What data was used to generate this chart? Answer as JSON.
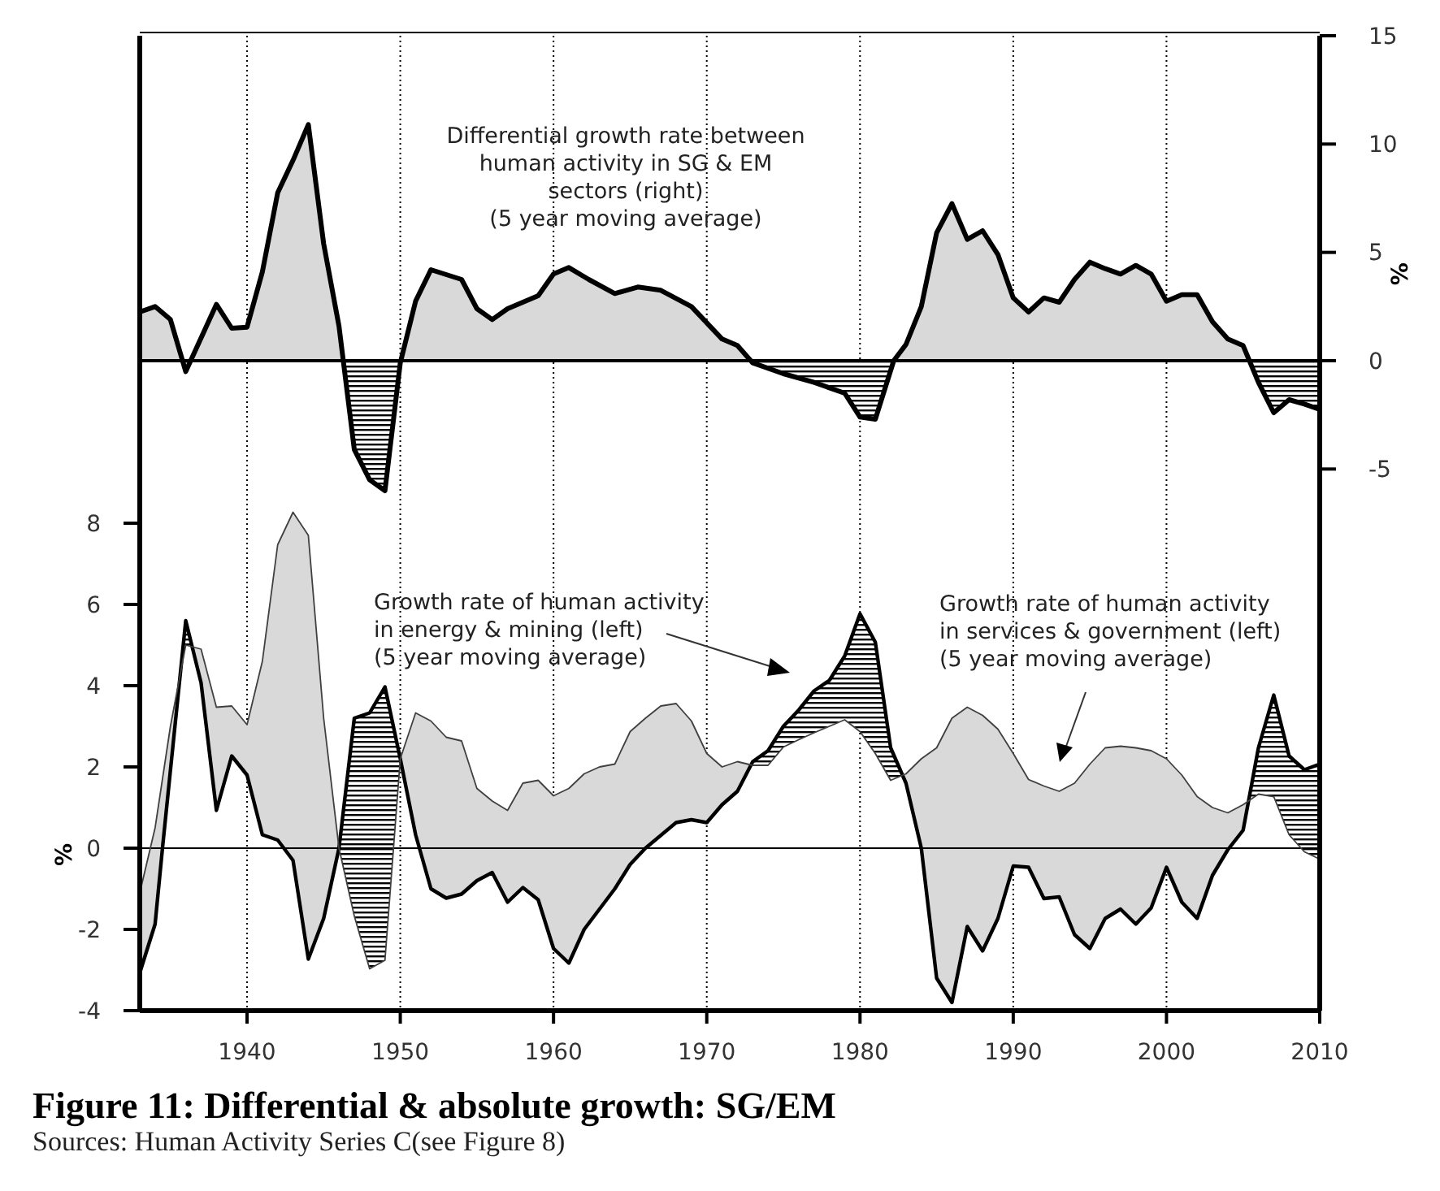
{
  "chart_data": {
    "type": "line",
    "title": "Figure 11: Differential & absolute growth: SG/EM",
    "ylabel": "%",
    "y2label": "%",
    "xlim": [
      1933,
      2010
    ],
    "xticks": [
      1940,
      1950,
      1960,
      1970,
      1980,
      1990,
      2000,
      2010
    ],
    "ylim": [
      -4,
      20
    ],
    "yticks": [
      -4,
      -2,
      0,
      2,
      4,
      6,
      8
    ],
    "y2lim": [
      -30,
      15
    ],
    "y2ticks": [
      -5,
      0,
      5,
      10,
      15
    ],
    "grid": "x",
    "ref_lines": [
      {
        "axis": "y",
        "value": 0,
        "color": "#000000"
      }
    ],
    "annotations": [
      "Differential growth rate between\nhuman activity in SG & EM\nsectors (right)\n(5 year moving average)",
      "Growth rate of human activity\nin energy & mining (left)\n(5 year moving average)",
      "Growth rate of human activity\nin services & government (left)\n(5 year moving average)",
      "Sources: Human Activity Series C(see Figure 8)"
    ],
    "series": [
      {
        "type": "area",
        "axis": "y2",
        "color": "#000000",
        "x": [
          1933,
          1934,
          1935,
          1936,
          1938,
          1939,
          1940,
          1941,
          1942,
          1943,
          1944,
          1945,
          1946,
          1947,
          1948,
          1949,
          1950,
          1951,
          1952,
          1954,
          1955,
          1956,
          1957,
          1959,
          1960,
          1961,
          1962.3,
          1964,
          1965.5,
          1967,
          1969,
          1971,
          1972,
          1973,
          1975,
          1977,
          1979,
          1980,
          1981,
          1982.2,
          1983,
          1984,
          1985,
          1986,
          1987,
          1988,
          1989,
          1990,
          1991,
          1992,
          1993,
          1994,
          1995,
          1996,
          1997,
          1998,
          1999,
          2000,
          2001,
          2002,
          2003,
          2004,
          2005,
          2006,
          2007,
          2008,
          2009,
          2010
        ],
        "values": [
          2.25,
          2.5,
          1.9,
          -0.5,
          2.6,
          1.5,
          1.55,
          4.1,
          7.75,
          9.25,
          10.9,
          5.4,
          1.6,
          -4.1,
          -5.5,
          -6,
          -0.1,
          2.75,
          4.2,
          3.75,
          2.4,
          1.9,
          2.4,
          3.0,
          4.0,
          4.3,
          3.75,
          3.1,
          3.4,
          3.25,
          2.5,
          1.0,
          0.7,
          -0.1,
          -0.6,
          -1.0,
          -1.5,
          -2.6,
          -2.7,
          0,
          0.75,
          2.5,
          5.9,
          7.25,
          5.6,
          6.0,
          4.9,
          2.9,
          2.25,
          2.9,
          2.7,
          3.75,
          4.55,
          4.25,
          4.0,
          4.4,
          4.0,
          2.75,
          3.05,
          3.05,
          1.8,
          1.0,
          0.7,
          -1.0,
          -2.4,
          -1.8,
          -2.0,
          -2.25
        ]
      },
      {
        "color": "#000000",
        "x": [
          1933,
          1934,
          1934.5,
          1936,
          1937,
          1938,
          1939,
          1940,
          1941,
          1942,
          1943,
          1944,
          1945,
          1946,
          1947,
          1948,
          1949,
          1950,
          1951,
          1952,
          1953,
          1954,
          1955,
          1956,
          1957,
          1958,
          1959,
          1960,
          1961,
          1962,
          1964,
          1965,
          1966,
          1968,
          1969,
          1970,
          1971,
          1972,
          1973,
          1974,
          1975,
          1976,
          1977,
          1978,
          1979,
          1980,
          1981,
          1982,
          1983,
          1984,
          1985,
          1986,
          1987,
          1988,
          1989,
          1990,
          1991,
          1992,
          1993,
          1994,
          1995,
          1996,
          1997,
          1998,
          1999,
          2000,
          2001,
          2002,
          2003,
          2004,
          2005,
          2006,
          2007,
          2008,
          2009,
          2010
        ],
        "values": [
          -3.07,
          -1.87,
          0.07,
          5.6,
          4.07,
          0.93,
          2.27,
          1.8,
          0.33,
          0.2,
          -0.3,
          -2.73,
          -1.73,
          0,
          3.2,
          3.33,
          3.97,
          2.2,
          0.33,
          -1.0,
          -1.23,
          -1.13,
          -0.8,
          -0.6,
          -1.33,
          -0.97,
          -1.27,
          -2.47,
          -2.83,
          -2.0,
          -1.0,
          -0.4,
          0,
          0.63,
          0.7,
          0.63,
          1.07,
          1.4,
          2.13,
          2.4,
          3.0,
          3.4,
          3.87,
          4.13,
          4.73,
          5.77,
          5.07,
          2.47,
          1.6,
          0,
          -3.2,
          -3.8,
          -1.93,
          -2.53,
          -1.73,
          -0.44,
          -0.47,
          -1.24,
          -1.2,
          -2.13,
          -2.47,
          -1.73,
          -1.5,
          -1.87,
          -1.47,
          -0.47,
          -1.33,
          -1.73,
          -0.67,
          -0.04,
          0.44,
          2.47,
          3.77,
          2.27,
          1.93,
          2.07
        ]
      },
      {
        "color": "#404040",
        "x": [
          1933,
          1934,
          1935,
          1936,
          1937,
          1938,
          1939,
          1940,
          1941,
          1942,
          1943,
          1944,
          1945,
          1946,
          1947,
          1948,
          1949,
          1950,
          1951,
          1952,
          1953,
          1954,
          1955,
          1956,
          1957,
          1958,
          1959,
          1960,
          1961,
          1962,
          1963,
          1964,
          1965,
          1966,
          1967,
          1968,
          1969,
          1970,
          1971,
          1972,
          1973,
          1974,
          1975,
          1976,
          1977,
          1978,
          1979,
          1980,
          1981,
          1982,
          1983,
          1984,
          1985,
          1986,
          1987,
          1988,
          1989,
          1990,
          1991,
          1992,
          1993,
          1994,
          1995,
          1996,
          1997,
          1998,
          1999,
          2000,
          2001,
          2002,
          2003,
          2004,
          2005,
          2006,
          2007,
          2008,
          2009,
          2010
        ],
        "values": [
          -1.1,
          0.5,
          3.0,
          5.0,
          4.9,
          3.47,
          3.5,
          3.04,
          4.6,
          7.47,
          8.27,
          7.7,
          3.2,
          0,
          -1.67,
          -2.97,
          -2.76,
          2.2,
          3.33,
          3.13,
          2.73,
          2.64,
          1.47,
          1.16,
          0.93,
          1.6,
          1.67,
          1.29,
          1.47,
          1.83,
          2.0,
          2.07,
          2.87,
          3.2,
          3.5,
          3.56,
          3.13,
          2.33,
          2.0,
          2.13,
          2.04,
          2.04,
          2.49,
          2.67,
          2.84,
          3.0,
          3.16,
          2.87,
          2.33,
          1.67,
          1.83,
          2.2,
          2.47,
          3.2,
          3.47,
          3.27,
          2.93,
          2.33,
          1.69,
          1.53,
          1.4,
          1.6,
          2.07,
          2.47,
          2.51,
          2.47,
          2.4,
          2.2,
          1.8,
          1.27,
          1.0,
          0.87,
          1.07,
          1.33,
          1.27,
          0.33,
          -0.09,
          -0.27
        ]
      }
    ]
  }
}
